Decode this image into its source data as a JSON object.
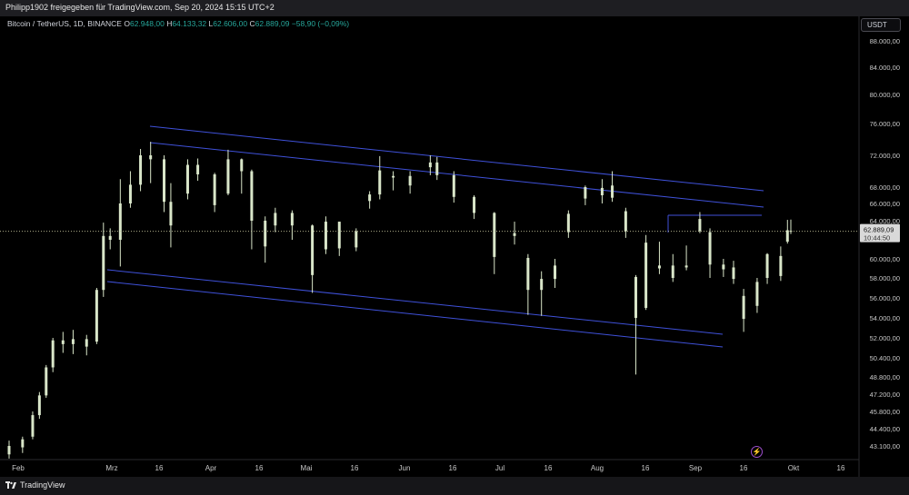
{
  "header": {
    "share_text": "Philipp1902 freigegeben für TradingView.com, Sep 20, 2024 15:15 UTC+2"
  },
  "legend": {
    "symbol": "Bitcoin / TetherUS, 1D, BINANCE",
    "open_label": "O",
    "open": "62.948,00",
    "high_label": "H",
    "high": "64.133,32",
    "low_label": "L",
    "low": "62.606,00",
    "close_label": "C",
    "close": "62.889,09",
    "change": "−58,90 (−0,09%)"
  },
  "currency_button": "USDT",
  "price_scale": {
    "ticks": [
      "88.000,00",
      "84.000,00",
      "80.000,00",
      "76.000,00",
      "72.000,00",
      "68.000,00",
      "66.000,00",
      "64.000,00",
      "60.000,00",
      "58.000,00",
      "56.000,00",
      "54.000,00",
      "52.000,00",
      "50.400,00",
      "48.800,00",
      "47.200,00",
      "45.800,00",
      "44.400,00",
      "43.100,00"
    ],
    "last_price": "62.889,09",
    "countdown": "10:44:50"
  },
  "time_axis": {
    "labels": [
      "Feb",
      "Mrz",
      "16",
      "Apr",
      "16",
      "Mai",
      "16",
      "Jun",
      "16",
      "Jul",
      "16",
      "Aug",
      "16",
      "Sep",
      "16",
      "Okt",
      "16"
    ]
  },
  "footer": {
    "brand": "TradingView"
  },
  "colors": {
    "up": "#26a69a",
    "down": "#ef5350",
    "candle": "#d9e6c9",
    "trendline": "#3f51d9",
    "last_price_line": "#c9c9a0",
    "background": "#000000"
  },
  "chart_data": {
    "type": "candlestick",
    "symbol": "Bitcoin / TetherUS",
    "interval": "1D",
    "exchange": "BINANCE",
    "y_ticks": [
      88000,
      84000,
      80000,
      76000,
      72000,
      68000,
      66000,
      64000,
      60000,
      58000,
      56000,
      54000,
      52000,
      50400,
      48800,
      47200,
      45800,
      44400,
      43100
    ],
    "last_close": 62889.09,
    "x_labels": [
      "Feb",
      "Mrz",
      "16",
      "Apr",
      "16",
      "Mai",
      "16",
      "Jun",
      "16",
      "Jul",
      "16",
      "Aug",
      "16",
      "Sep",
      "16",
      "Okt",
      "16"
    ],
    "ohlc_points": [
      [
        "2024-02-01",
        42500,
        43500,
        42200,
        43100
      ],
      [
        "2024-02-05",
        43000,
        43800,
        42600,
        43600
      ],
      [
        "2024-02-08",
        43800,
        45800,
        43600,
        45500
      ],
      [
        "2024-02-10",
        45500,
        47400,
        45200,
        47100
      ],
      [
        "2024-02-12",
        47100,
        49800,
        46900,
        49600
      ],
      [
        "2024-02-14",
        49600,
        52000,
        49200,
        51800
      ],
      [
        "2024-02-17",
        51800,
        52600,
        50800,
        51500
      ],
      [
        "2024-02-20",
        51500,
        52800,
        50700,
        51900
      ],
      [
        "2024-02-24",
        51900,
        52300,
        50600,
        51300
      ],
      [
        "2024-02-27",
        51700,
        57000,
        51500,
        56800
      ],
      [
        "2024-02-29",
        56800,
        63800,
        56100,
        62400
      ],
      [
        "2024-03-02",
        62400,
        63200,
        61000,
        62000
      ],
      [
        "2024-03-05",
        62000,
        69000,
        59200,
        66000
      ],
      [
        "2024-03-08",
        66000,
        70000,
        65500,
        68300
      ],
      [
        "2024-03-11",
        68300,
        72800,
        67500,
        72000
      ],
      [
        "2024-03-14",
        72000,
        73700,
        68500,
        71500
      ],
      [
        "2024-03-18",
        71500,
        72000,
        65000,
        66200
      ],
      [
        "2024-03-20",
        66200,
        68500,
        61200,
        63500
      ],
      [
        "2024-03-25",
        67200,
        71500,
        66500,
        70800
      ],
      [
        "2024-03-28",
        70800,
        71600,
        68800,
        69600
      ],
      [
        "2024-04-02",
        69600,
        69800,
        65000,
        65800
      ],
      [
        "2024-04-06",
        67200,
        72700,
        67000,
        71500
      ],
      [
        "2024-04-10",
        71500,
        71600,
        67200,
        70000
      ],
      [
        "2024-04-13",
        70000,
        70200,
        61000,
        64000
      ],
      [
        "2024-04-17",
        64000,
        64500,
        59600,
        61300
      ],
      [
        "2024-04-20",
        63500,
        65500,
        62800,
        64900
      ],
      [
        "2024-04-25",
        64900,
        65200,
        62000,
        63500
      ],
      [
        "2024-05-01",
        63500,
        63600,
        56500,
        58300
      ],
      [
        "2024-05-05",
        61000,
        64500,
        60500,
        63900
      ],
      [
        "2024-05-09",
        63900,
        63900,
        60300,
        61100
      ],
      [
        "2024-05-14",
        61200,
        63200,
        60800,
        62900
      ],
      [
        "2024-05-18",
        66300,
        67500,
        65400,
        67100
      ],
      [
        "2024-05-21",
        67100,
        71900,
        66500,
        70100
      ],
      [
        "2024-05-25",
        69200,
        70000,
        67600,
        69400
      ],
      [
        "2024-05-30",
        69400,
        70000,
        67200,
        68200
      ],
      [
        "2024-06-05",
        70500,
        72000,
        69500,
        71100
      ],
      [
        "2024-06-07",
        71100,
        71800,
        68900,
        69500
      ],
      [
        "2024-06-12",
        69500,
        70000,
        66100,
        66800
      ],
      [
        "2024-06-18",
        66800,
        67000,
        64200,
        64900
      ],
      [
        "2024-06-24",
        64900,
        65000,
        58400,
        60200
      ],
      [
        "2024-06-30",
        62400,
        63900,
        61500,
        62700
      ],
      [
        "2024-07-04",
        60100,
        60500,
        54300,
        56800
      ],
      [
        "2024-07-08",
        56800,
        58700,
        54200,
        57900
      ],
      [
        "2024-07-12",
        57900,
        60000,
        57000,
        59300
      ],
      [
        "2024-07-16",
        62800,
        65200,
        62200,
        64800
      ],
      [
        "2024-07-21",
        66600,
        68200,
        65800,
        68000
      ],
      [
        "2024-07-26",
        67000,
        69000,
        66000,
        67900
      ],
      [
        "2024-07-29",
        68200,
        70000,
        66200,
        66700
      ],
      [
        "2024-08-02",
        65100,
        65500,
        62200,
        62900
      ],
      [
        "2024-08-05",
        58100,
        58300,
        49000,
        54000
      ],
      [
        "2024-08-08",
        55000,
        62500,
        54800,
        61700
      ],
      [
        "2024-08-12",
        59000,
        61800,
        58400,
        59300
      ],
      [
        "2024-08-16",
        58000,
        60500,
        57600,
        59300
      ],
      [
        "2024-08-20",
        59300,
        61400,
        58800,
        59100
      ],
      [
        "2024-08-24",
        62900,
        65000,
        62700,
        64200
      ],
      [
        "2024-08-27",
        62800,
        63200,
        58000,
        59400
      ],
      [
        "2024-08-31",
        59400,
        60000,
        58100,
        58900
      ],
      [
        "2024-09-03",
        59100,
        59800,
        57400,
        57900
      ],
      [
        "2024-09-06",
        56200,
        56900,
        52600,
        53900
      ],
      [
        "2024-09-10",
        55200,
        58000,
        54500,
        57600
      ],
      [
        "2024-09-13",
        58000,
        60600,
        57400,
        60500
      ],
      [
        "2024-09-17",
        58200,
        61300,
        57700,
        60300
      ],
      [
        "2024-09-19",
        61800,
        64100,
        61600,
        63000
      ],
      [
        "2024-09-20",
        62948,
        64133.32,
        62606,
        62889.09
      ]
    ]
  }
}
